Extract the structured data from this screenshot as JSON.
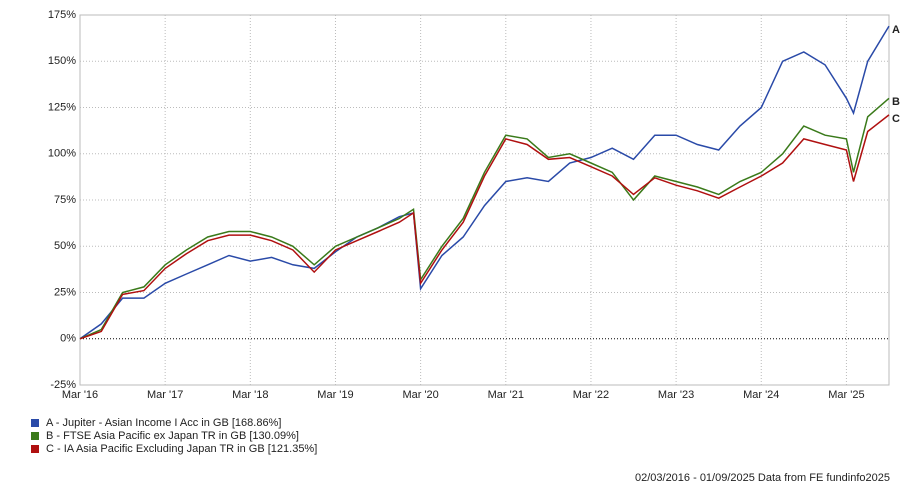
{
  "chart_data": {
    "type": "line",
    "x": [
      "2016-03",
      "2016-06",
      "2016-09",
      "2016-12",
      "2017-03",
      "2017-06",
      "2017-09",
      "2017-12",
      "2018-03",
      "2018-06",
      "2018-09",
      "2018-12",
      "2019-03",
      "2019-06",
      "2019-09",
      "2019-12",
      "2020-02",
      "2020-03",
      "2020-06",
      "2020-09",
      "2020-12",
      "2021-03",
      "2021-06",
      "2021-09",
      "2021-12",
      "2022-03",
      "2022-06",
      "2022-09",
      "2022-12",
      "2023-03",
      "2023-06",
      "2023-09",
      "2023-12",
      "2024-03",
      "2024-06",
      "2024-09",
      "2024-12",
      "2025-03",
      "2025-04",
      "2025-06",
      "2025-09"
    ],
    "series": [
      {
        "name": "A - Jupiter - Asian Income I Acc in GB [168.86%]",
        "label": "A",
        "color": "#2a4aa8",
        "values": [
          0,
          8,
          22,
          22,
          30,
          35,
          40,
          45,
          42,
          44,
          40,
          38,
          47,
          55,
          60,
          66,
          68,
          27,
          45,
          55,
          72,
          85,
          87,
          85,
          95,
          98,
          103,
          97,
          110,
          110,
          105,
          102,
          115,
          125,
          150,
          155,
          148,
          130,
          122,
          150,
          169
        ]
      },
      {
        "name": "B - FTSE Asia Pacific ex Japan TR in GB [130.09%]",
        "label": "B",
        "color": "#3a7a1a",
        "values": [
          0,
          5,
          25,
          28,
          40,
          48,
          55,
          58,
          58,
          55,
          50,
          40,
          50,
          55,
          60,
          65,
          70,
          32,
          50,
          65,
          90,
          110,
          108,
          98,
          100,
          95,
          90,
          75,
          88,
          85,
          82,
          78,
          85,
          90,
          100,
          115,
          110,
          108,
          90,
          120,
          130
        ]
      },
      {
        "name": "C - IA Asia Pacific Excluding Japan TR in GB [121.35%]",
        "label": "C",
        "color": "#b01010",
        "values": [
          0,
          4,
          24,
          26,
          38,
          46,
          53,
          56,
          56,
          53,
          48,
          36,
          48,
          53,
          58,
          63,
          68,
          30,
          48,
          63,
          88,
          108,
          105,
          97,
          98,
          93,
          88,
          78,
          87,
          83,
          80,
          76,
          82,
          88,
          95,
          108,
          105,
          102,
          85,
          112,
          121
        ]
      }
    ],
    "xlim": [
      "2016-03",
      "2025-09"
    ],
    "xticks": [
      {
        "value": "2016-03",
        "label": "Mar '16"
      },
      {
        "value": "2017-03",
        "label": "Mar '17"
      },
      {
        "value": "2018-03",
        "label": "Mar '18"
      },
      {
        "value": "2019-03",
        "label": "Mar '19"
      },
      {
        "value": "2020-03",
        "label": "Mar '20"
      },
      {
        "value": "2021-03",
        "label": "Mar '21"
      },
      {
        "value": "2022-03",
        "label": "Mar '22"
      },
      {
        "value": "2023-03",
        "label": "Mar '23"
      },
      {
        "value": "2024-03",
        "label": "Mar '24"
      },
      {
        "value": "2025-03",
        "label": "Mar '25"
      }
    ],
    "ylim": [
      -25,
      175
    ],
    "yticks": [
      {
        "value": -25,
        "label": "-25%"
      },
      {
        "value": 0,
        "label": "0%"
      },
      {
        "value": 25,
        "label": "25%"
      },
      {
        "value": 50,
        "label": "50%"
      },
      {
        "value": 75,
        "label": "75%"
      },
      {
        "value": 100,
        "label": "100%"
      },
      {
        "value": 125,
        "label": "125%"
      },
      {
        "value": 150,
        "label": "150%"
      },
      {
        "value": 175,
        "label": "175%"
      }
    ],
    "grid": true,
    "source": "02/03/2016 - 01/09/2025 Data from FE fundinfo2025"
  }
}
